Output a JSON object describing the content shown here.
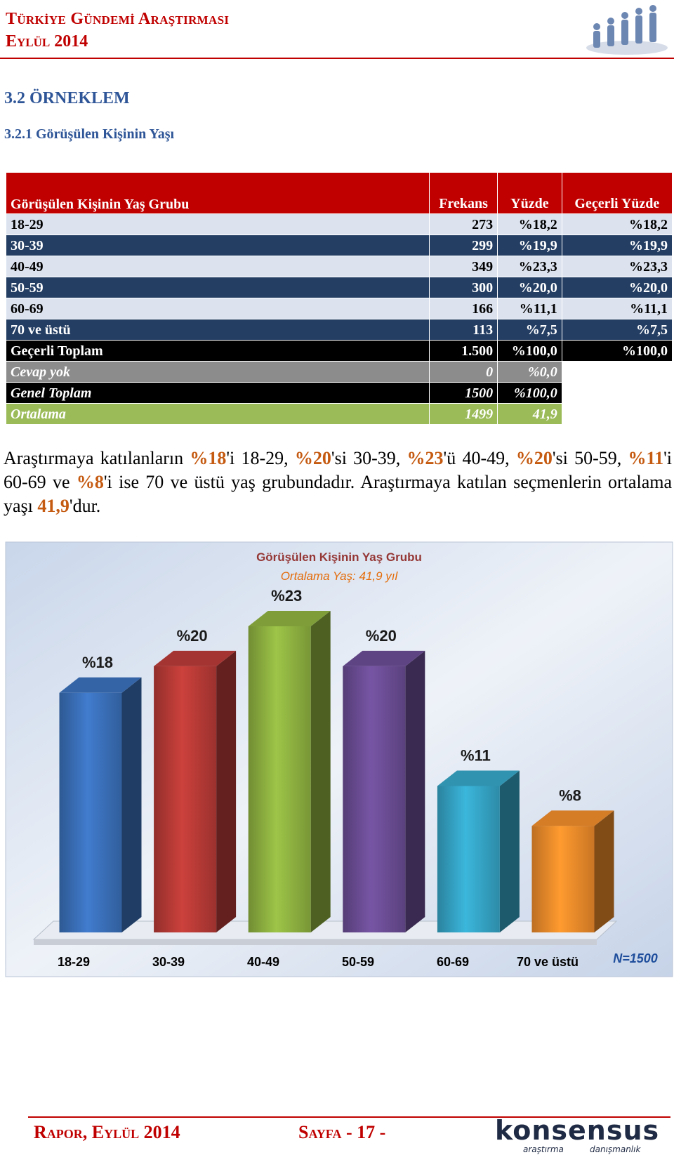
{
  "header": {
    "title": "Türkiye Gündemi Araştırması",
    "subtitle": "Eylül 2014"
  },
  "section": {
    "title": "3.2 ÖRNEKLEM",
    "subtitle": "3.2.1 Görüşülen Kişinin Yaşı"
  },
  "table": {
    "headers": [
      "Görüşülen Kişinin Yaş Grubu",
      "Frekans",
      "Yüzde",
      "Geçerli Yüzde"
    ],
    "rows": [
      [
        "18-29",
        "273",
        "%18,2",
        "%18,2"
      ],
      [
        "30-39",
        "299",
        "%19,9",
        "%19,9"
      ],
      [
        "40-49",
        "349",
        "%23,3",
        "%23,3"
      ],
      [
        "50-59",
        "300",
        "%20,0",
        "%20,0"
      ],
      [
        "60-69",
        "166",
        "%11,1",
        "%11,1"
      ],
      [
        "70 ve üstü",
        "113",
        "%7,5",
        "%7,5"
      ],
      [
        "Geçerli Toplam",
        "1.500",
        "%100,0",
        "%100,0"
      ],
      [
        "Cevap yok",
        "0",
        "%0,0"
      ],
      [
        "Genel Toplam",
        "1500",
        "%100,0"
      ],
      [
        "Ortalama",
        "1499",
        "41,9"
      ]
    ]
  },
  "paragraph": [
    "Araştırmaya katılanların ",
    "%18",
    "'i 18-29, ",
    "%20",
    "'si 30-39, ",
    "%23",
    "'ü 40-49, ",
    "%20",
    "'si 50-59, ",
    "%11",
    "'i 60-69 ve ",
    "%8",
    "'i ise 70 ve üstü yaş grubundadır. Araştırmaya katılan seçmenlerin ortalama yaşı ",
    "41,9",
    "'dur."
  ],
  "chart_data": {
    "type": "bar",
    "title": "Görüşülen Kişinin Yaş Grubu",
    "subtitle": "Ortalama Yaş: 41,9 yıl",
    "categories": [
      "18-29",
      "30-39",
      "40-49",
      "50-59",
      "60-69",
      "70 ve üstü"
    ],
    "values": [
      18,
      20,
      23,
      20,
      11,
      8
    ],
    "value_labels": [
      "%18",
      "%20",
      "%23",
      "%20",
      "%11",
      "%8"
    ],
    "colors": [
      "#3a6fb8",
      "#b63a36",
      "#8db040",
      "#6a4c93",
      "#35a3c4",
      "#ec8a2a"
    ],
    "note": "N=1500"
  },
  "footer": {
    "left": "Rapor, Eylül 2014",
    "page": "Sayfa - 17 -",
    "brand": "konsensus",
    "brand_sub": [
      "araştırma",
      "danışmanlık"
    ]
  }
}
